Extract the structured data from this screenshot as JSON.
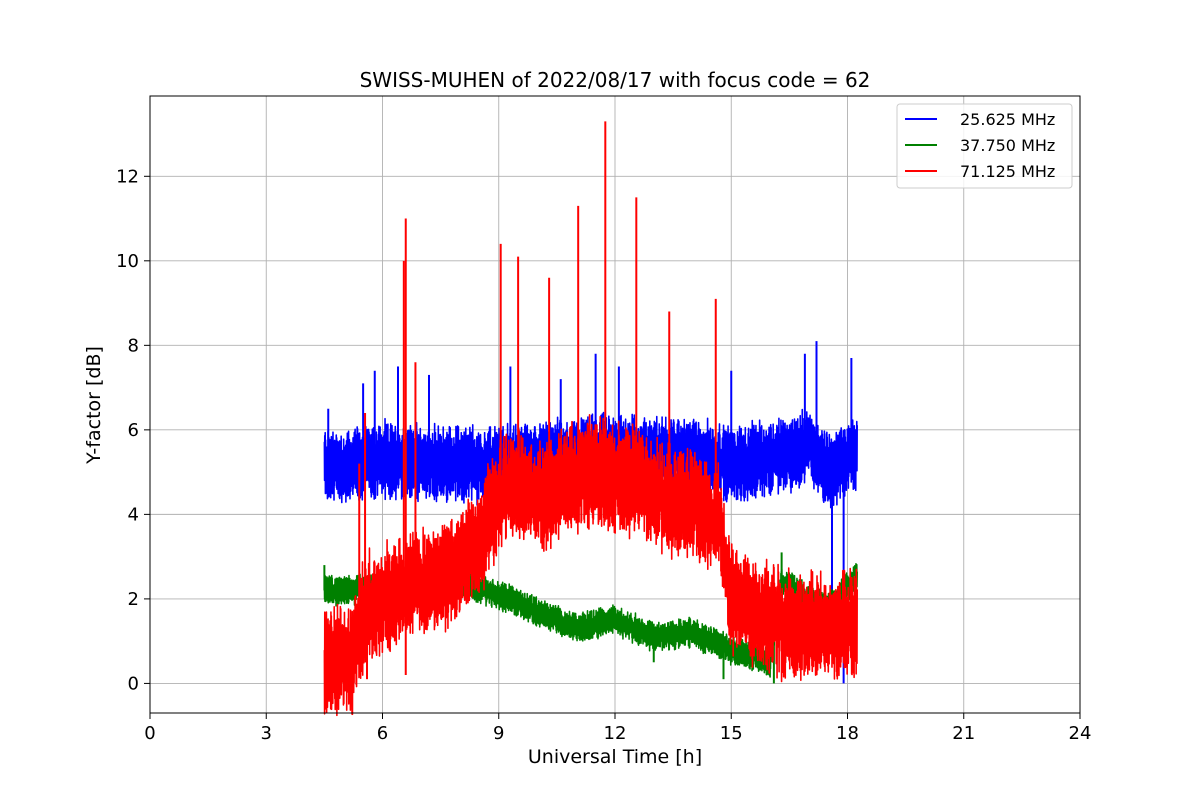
{
  "chart_data": {
    "type": "line",
    "title": "SWISS-MUHEN of 2022/08/17 with focus code = 62",
    "xlabel": "Universal Time [h]",
    "ylabel": "Y-factor [dB]",
    "xlim": [
      0,
      24
    ],
    "ylim": [
      -0.7,
      13.9
    ],
    "xticks": [
      0,
      3,
      6,
      9,
      12,
      15,
      18,
      21,
      24
    ],
    "yticks": [
      0,
      2,
      4,
      6,
      8,
      10,
      12
    ],
    "grid": true,
    "legend_position": "top-right",
    "x_range_data": [
      4.5,
      18.25
    ],
    "series": [
      {
        "name": "25.625 MHz",
        "color": "#0000ff",
        "band_center": [
          [
            4.5,
            5.2
          ],
          [
            5.0,
            5.1
          ],
          [
            6.0,
            5.3
          ],
          [
            7.0,
            5.2
          ],
          [
            8.0,
            5.2
          ],
          [
            9.0,
            5.2
          ],
          [
            10.0,
            5.3
          ],
          [
            11.0,
            5.4
          ],
          [
            12.0,
            5.5
          ],
          [
            13.0,
            5.4
          ],
          [
            14.0,
            5.4
          ],
          [
            15.0,
            5.2
          ],
          [
            16.0,
            5.3
          ],
          [
            17.0,
            5.6
          ],
          [
            17.5,
            5.0
          ],
          [
            18.25,
            5.5
          ]
        ],
        "band_amplitude": 0.9,
        "spikes": [
          [
            4.6,
            6.5
          ],
          [
            5.5,
            7.1
          ],
          [
            5.8,
            7.4
          ],
          [
            6.4,
            7.5
          ],
          [
            7.2,
            7.3
          ],
          [
            9.3,
            7.5
          ],
          [
            10.6,
            7.2
          ],
          [
            11.5,
            7.8
          ],
          [
            12.1,
            7.5
          ],
          [
            15.0,
            7.4
          ],
          [
            16.9,
            7.8
          ],
          [
            17.2,
            8.1
          ],
          [
            17.6,
            2.0
          ],
          [
            17.9,
            0.0
          ],
          [
            18.1,
            7.7
          ]
        ]
      },
      {
        "name": "37.750 MHz",
        "color": "#008000",
        "band_center": [
          [
            4.5,
            2.2
          ],
          [
            5.0,
            2.2
          ],
          [
            6.0,
            2.3
          ],
          [
            7.0,
            2.4
          ],
          [
            8.0,
            2.4
          ],
          [
            9.0,
            2.1
          ],
          [
            10.0,
            1.7
          ],
          [
            11.0,
            1.3
          ],
          [
            12.0,
            1.5
          ],
          [
            13.0,
            1.1
          ],
          [
            14.0,
            1.2
          ],
          [
            15.0,
            0.8
          ],
          [
            16.0,
            0.5
          ],
          [
            16.3,
            2.4
          ],
          [
            17.0,
            2.0
          ],
          [
            17.5,
            1.8
          ],
          [
            18.25,
            2.5
          ]
        ],
        "band_amplitude": 0.35,
        "spikes": [
          [
            4.5,
            2.8
          ],
          [
            8.2,
            2.9
          ],
          [
            13.0,
            0.5
          ],
          [
            14.8,
            0.1
          ],
          [
            16.1,
            0.0
          ],
          [
            16.3,
            3.1
          ]
        ]
      },
      {
        "name": "71.125 MHz",
        "color": "#ff0000",
        "band_center": [
          [
            4.5,
            0.5
          ],
          [
            5.2,
            0.6
          ],
          [
            5.6,
            1.8
          ],
          [
            6.5,
            2.2
          ],
          [
            7.5,
            2.5
          ],
          [
            8.5,
            3.3
          ],
          [
            9.0,
            4.5
          ],
          [
            9.5,
            4.7
          ],
          [
            10.0,
            4.4
          ],
          [
            10.5,
            4.6
          ],
          [
            11.0,
            4.9
          ],
          [
            11.5,
            5.0
          ],
          [
            12.0,
            4.9
          ],
          [
            12.5,
            4.8
          ],
          [
            13.0,
            4.5
          ],
          [
            13.5,
            4.3
          ],
          [
            14.0,
            4.2
          ],
          [
            14.7,
            3.8
          ],
          [
            15.0,
            2.0
          ],
          [
            16.0,
            1.5
          ],
          [
            17.0,
            1.3
          ],
          [
            18.25,
            1.4
          ]
        ],
        "band_amplitude": 1.3,
        "spikes": [
          [
            5.4,
            5.2
          ],
          [
            5.55,
            6.4
          ],
          [
            6.55,
            10.0
          ],
          [
            6.6,
            11.0
          ],
          [
            6.85,
            7.6
          ],
          [
            9.05,
            10.4
          ],
          [
            9.5,
            10.1
          ],
          [
            10.3,
            9.6
          ],
          [
            11.05,
            11.3
          ],
          [
            11.75,
            13.3
          ],
          [
            12.55,
            11.5
          ],
          [
            13.4,
            8.8
          ],
          [
            14.6,
            9.1
          ],
          [
            6.6,
            0.2
          ],
          [
            5.6,
            0.1
          ]
        ]
      }
    ]
  }
}
